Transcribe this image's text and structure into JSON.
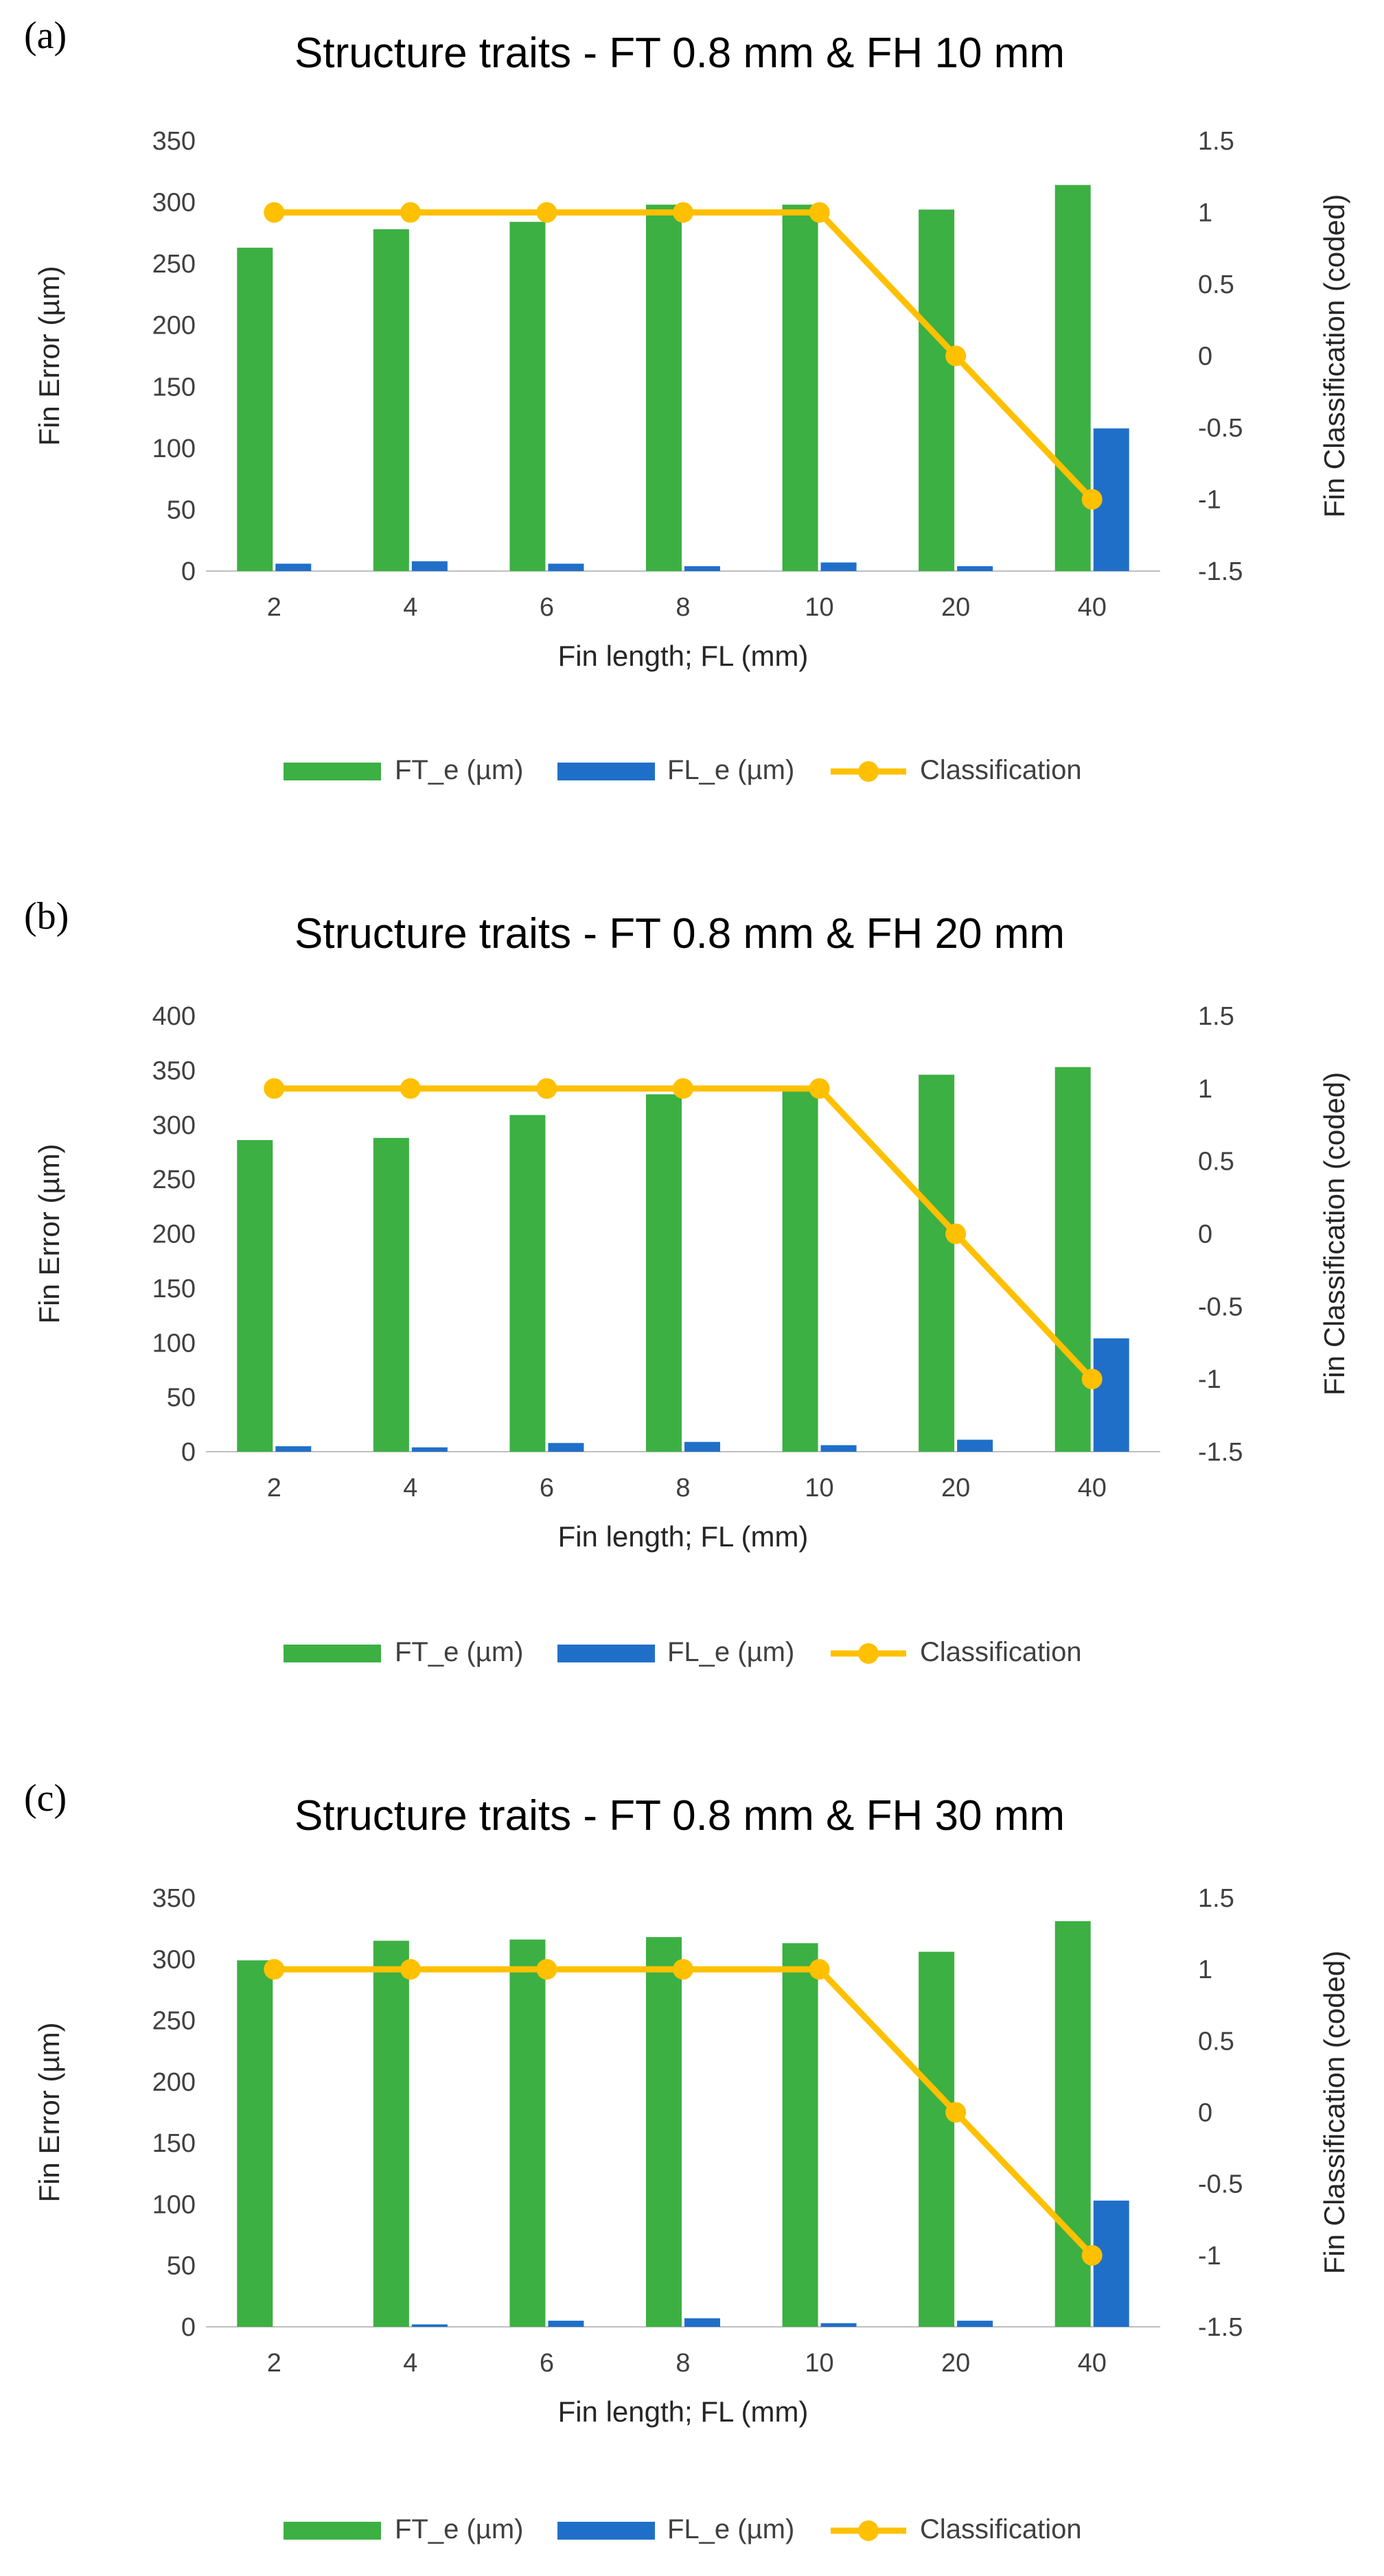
{
  "colors": {
    "ft": "#3CB043",
    "fl": "#1F6FC9",
    "classification": "#FFC000",
    "axis": "#BFBFBF",
    "tick_text": "#404040"
  },
  "legend": {
    "ft_label": "FT_e (µm)",
    "fl_label": "FL_e (µm)",
    "classification_label": "Classification"
  },
  "chart_data": [
    {
      "type": "bar",
      "panel_label": "(a)",
      "title": "Structure traits - FT 0.8 mm & FH 10 mm",
      "xlabel": "Fin length; FL (mm)",
      "ylabel": "Fin Error (µm)",
      "y2label": "Fin Classification (coded)",
      "categories": [
        "2",
        "4",
        "6",
        "8",
        "10",
        "20",
        "40"
      ],
      "ylim": [
        0,
        350
      ],
      "yticks": [
        0,
        50,
        100,
        150,
        200,
        250,
        300,
        350
      ],
      "y2lim": [
        -1.5,
        1.5
      ],
      "y2ticks": [
        "1.5",
        "1",
        "0.5",
        "0",
        "-0.5",
        "-1",
        "-1.5"
      ],
      "series": [
        {
          "name": "FT_e (µm)",
          "kind": "bar",
          "axis": "left",
          "values": [
            263,
            278,
            284,
            298,
            298,
            294,
            314
          ]
        },
        {
          "name": "FL_e (µm)",
          "kind": "bar",
          "axis": "left",
          "values": [
            6,
            8,
            6,
            4,
            7,
            4,
            116
          ]
        },
        {
          "name": "Classification",
          "kind": "line",
          "axis": "right",
          "values": [
            1,
            1,
            1,
            1,
            1,
            0,
            -1
          ]
        }
      ]
    },
    {
      "type": "bar",
      "panel_label": "(b)",
      "title": "Structure traits - FT 0.8 mm & FH 20 mm",
      "xlabel": "Fin length; FL (mm)",
      "ylabel": "Fin Error (µm)",
      "y2label": "Fin Classification (coded)",
      "categories": [
        "2",
        "4",
        "6",
        "8",
        "10",
        "20",
        "40"
      ],
      "ylim": [
        0,
        400
      ],
      "yticks": [
        0,
        50,
        100,
        150,
        200,
        250,
        300,
        350,
        400
      ],
      "y2lim": [
        -1.5,
        1.5
      ],
      "y2ticks": [
        "1.5",
        "1",
        "0.5",
        "0",
        "-0.5",
        "-1",
        "-1.5"
      ],
      "series": [
        {
          "name": "FT_e (µm)",
          "kind": "bar",
          "axis": "left",
          "values": [
            286,
            288,
            309,
            328,
            335,
            346,
            353
          ]
        },
        {
          "name": "FL_e (µm)",
          "kind": "bar",
          "axis": "left",
          "values": [
            5,
            4,
            8,
            9,
            6,
            11,
            104
          ]
        },
        {
          "name": "Classification",
          "kind": "line",
          "axis": "right",
          "values": [
            1,
            1,
            1,
            1,
            1,
            0,
            -1
          ]
        }
      ]
    },
    {
      "type": "bar",
      "panel_label": "(c)",
      "title": "Structure traits - FT 0.8 mm & FH 30 mm",
      "xlabel": "Fin length; FL (mm)",
      "ylabel": "Fin Error (µm)",
      "y2label": "Fin Classification (coded)",
      "categories": [
        "2",
        "4",
        "6",
        "8",
        "10",
        "20",
        "40"
      ],
      "ylim": [
        0,
        350
      ],
      "yticks": [
        0,
        50,
        100,
        150,
        200,
        250,
        300,
        350
      ],
      "y2lim": [
        -1.5,
        1.5
      ],
      "y2ticks": [
        "1.5",
        "1",
        "0.5",
        "0",
        "-0.5",
        "-1",
        "-1.5"
      ],
      "series": [
        {
          "name": "FT_e (µm)",
          "kind": "bar",
          "axis": "left",
          "values": [
            299,
            315,
            316,
            318,
            313,
            306,
            331
          ]
        },
        {
          "name": "FL_e (µm)",
          "kind": "bar",
          "axis": "left",
          "values": [
            0,
            2,
            5,
            7,
            3,
            5,
            103
          ]
        },
        {
          "name": "Classification",
          "kind": "line",
          "axis": "right",
          "values": [
            1,
            1,
            1,
            1,
            1,
            0,
            -1
          ]
        }
      ]
    }
  ]
}
